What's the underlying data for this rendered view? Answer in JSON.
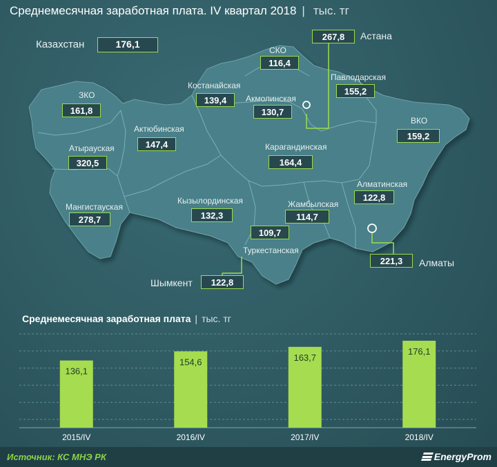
{
  "header": {
    "title": "Среднемесячная заработная плата. IV квартал 2018",
    "separator": "|",
    "unit": "тыс. тг"
  },
  "map": {
    "country": {
      "label": "Казахстан",
      "value": "176,1"
    },
    "regions": [
      {
        "id": "zko",
        "label": "ЗКО",
        "value": "161,8"
      },
      {
        "id": "atyrau",
        "label": "Атырауская",
        "value": "320,5"
      },
      {
        "id": "mangystau",
        "label": "Мангистауская",
        "value": "278,7"
      },
      {
        "id": "aktobe",
        "label": "Актюбинская",
        "value": "147,4"
      },
      {
        "id": "kostanay",
        "label": "Костанайская",
        "value": "139,4"
      },
      {
        "id": "sko",
        "label": "СКО",
        "value": "116,4"
      },
      {
        "id": "akmola",
        "label": "Акмолинская",
        "value": "130,7"
      },
      {
        "id": "astana",
        "label": "Астана",
        "value": "267,8"
      },
      {
        "id": "pavlodar",
        "label": "Павлодарская",
        "value": "155,2"
      },
      {
        "id": "vko",
        "label": "ВКО",
        "value": "159,2"
      },
      {
        "id": "karaganda",
        "label": "Карагандинская",
        "value": "164,4"
      },
      {
        "id": "kyzylorda",
        "label": "Кызылординская",
        "value": "132,3"
      },
      {
        "id": "zhambyl",
        "label": "Жамбылская",
        "value": "114,7"
      },
      {
        "id": "almaty_reg",
        "label": "Алматинская",
        "value": "122,8"
      },
      {
        "id": "turkestan",
        "label": "Туркестанская",
        "value": "109,7"
      },
      {
        "id": "shymkent",
        "label": "Шымкент",
        "value": "122,8"
      },
      {
        "id": "almaty",
        "label": "Алматы",
        "value": "221,3"
      }
    ]
  },
  "colors": {
    "accent_green": "#9ddd4d",
    "bar_green": "#a6dc4f",
    "background": "#2f5a62",
    "map_fill": "#4a8089"
  },
  "bar_section": {
    "title": "Среднемесячная заработная плата",
    "separator": "|",
    "unit": "тыс. тг"
  },
  "chart_data": {
    "type": "bar",
    "title": "Среднемесячная заработная плата",
    "ylabel": "тыс. тг",
    "categories": [
      "2015/IV",
      "2016/IV",
      "2017/IV",
      "2018/IV"
    ],
    "values": [
      136.1,
      154.6,
      163.7,
      176.1
    ],
    "value_labels": [
      "136,1",
      "154,6",
      "163,7",
      "176,1"
    ],
    "ylim": [
      0,
      190
    ],
    "grid": true,
    "grid_style": "dashed"
  },
  "footer": {
    "source": "Источник: КС МНЭ РК",
    "brand": "EnergyProm"
  }
}
